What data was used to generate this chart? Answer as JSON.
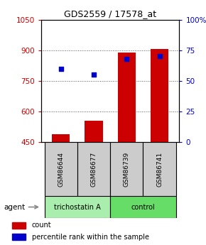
{
  "title": "GDS2559 / 17578_at",
  "samples": [
    "GSM86644",
    "GSM86677",
    "GSM86739",
    "GSM86741"
  ],
  "bar_values": [
    490,
    555,
    890,
    905
  ],
  "dot_values_pct": [
    60,
    55,
    68,
    70
  ],
  "bar_color": "#cc0000",
  "dot_color": "#0000cc",
  "ylim_left": [
    450,
    1050
  ],
  "ylim_right": [
    0,
    100
  ],
  "yticks_left": [
    450,
    600,
    750,
    900,
    1050
  ],
  "ytick_labels_left": [
    "450",
    "600",
    "750",
    "900",
    "1050"
  ],
  "yticks_right": [
    0,
    25,
    50,
    75,
    100
  ],
  "ytick_labels_right": [
    "0",
    "25",
    "50",
    "75",
    "100%"
  ],
  "grid_lines": [
    600,
    750,
    900
  ],
  "agent_labels": [
    "trichostatin A",
    "control"
  ],
  "agent_colors": [
    "#aaeead",
    "#66dd66"
  ],
  "group_label": "agent",
  "legend_items": [
    [
      "count",
      "#cc0000"
    ],
    [
      "percentile rank within the sample",
      "#0000cc"
    ]
  ],
  "bg_color": "#ffffff",
  "sample_box_color": "#cccccc",
  "bar_width": 0.55
}
